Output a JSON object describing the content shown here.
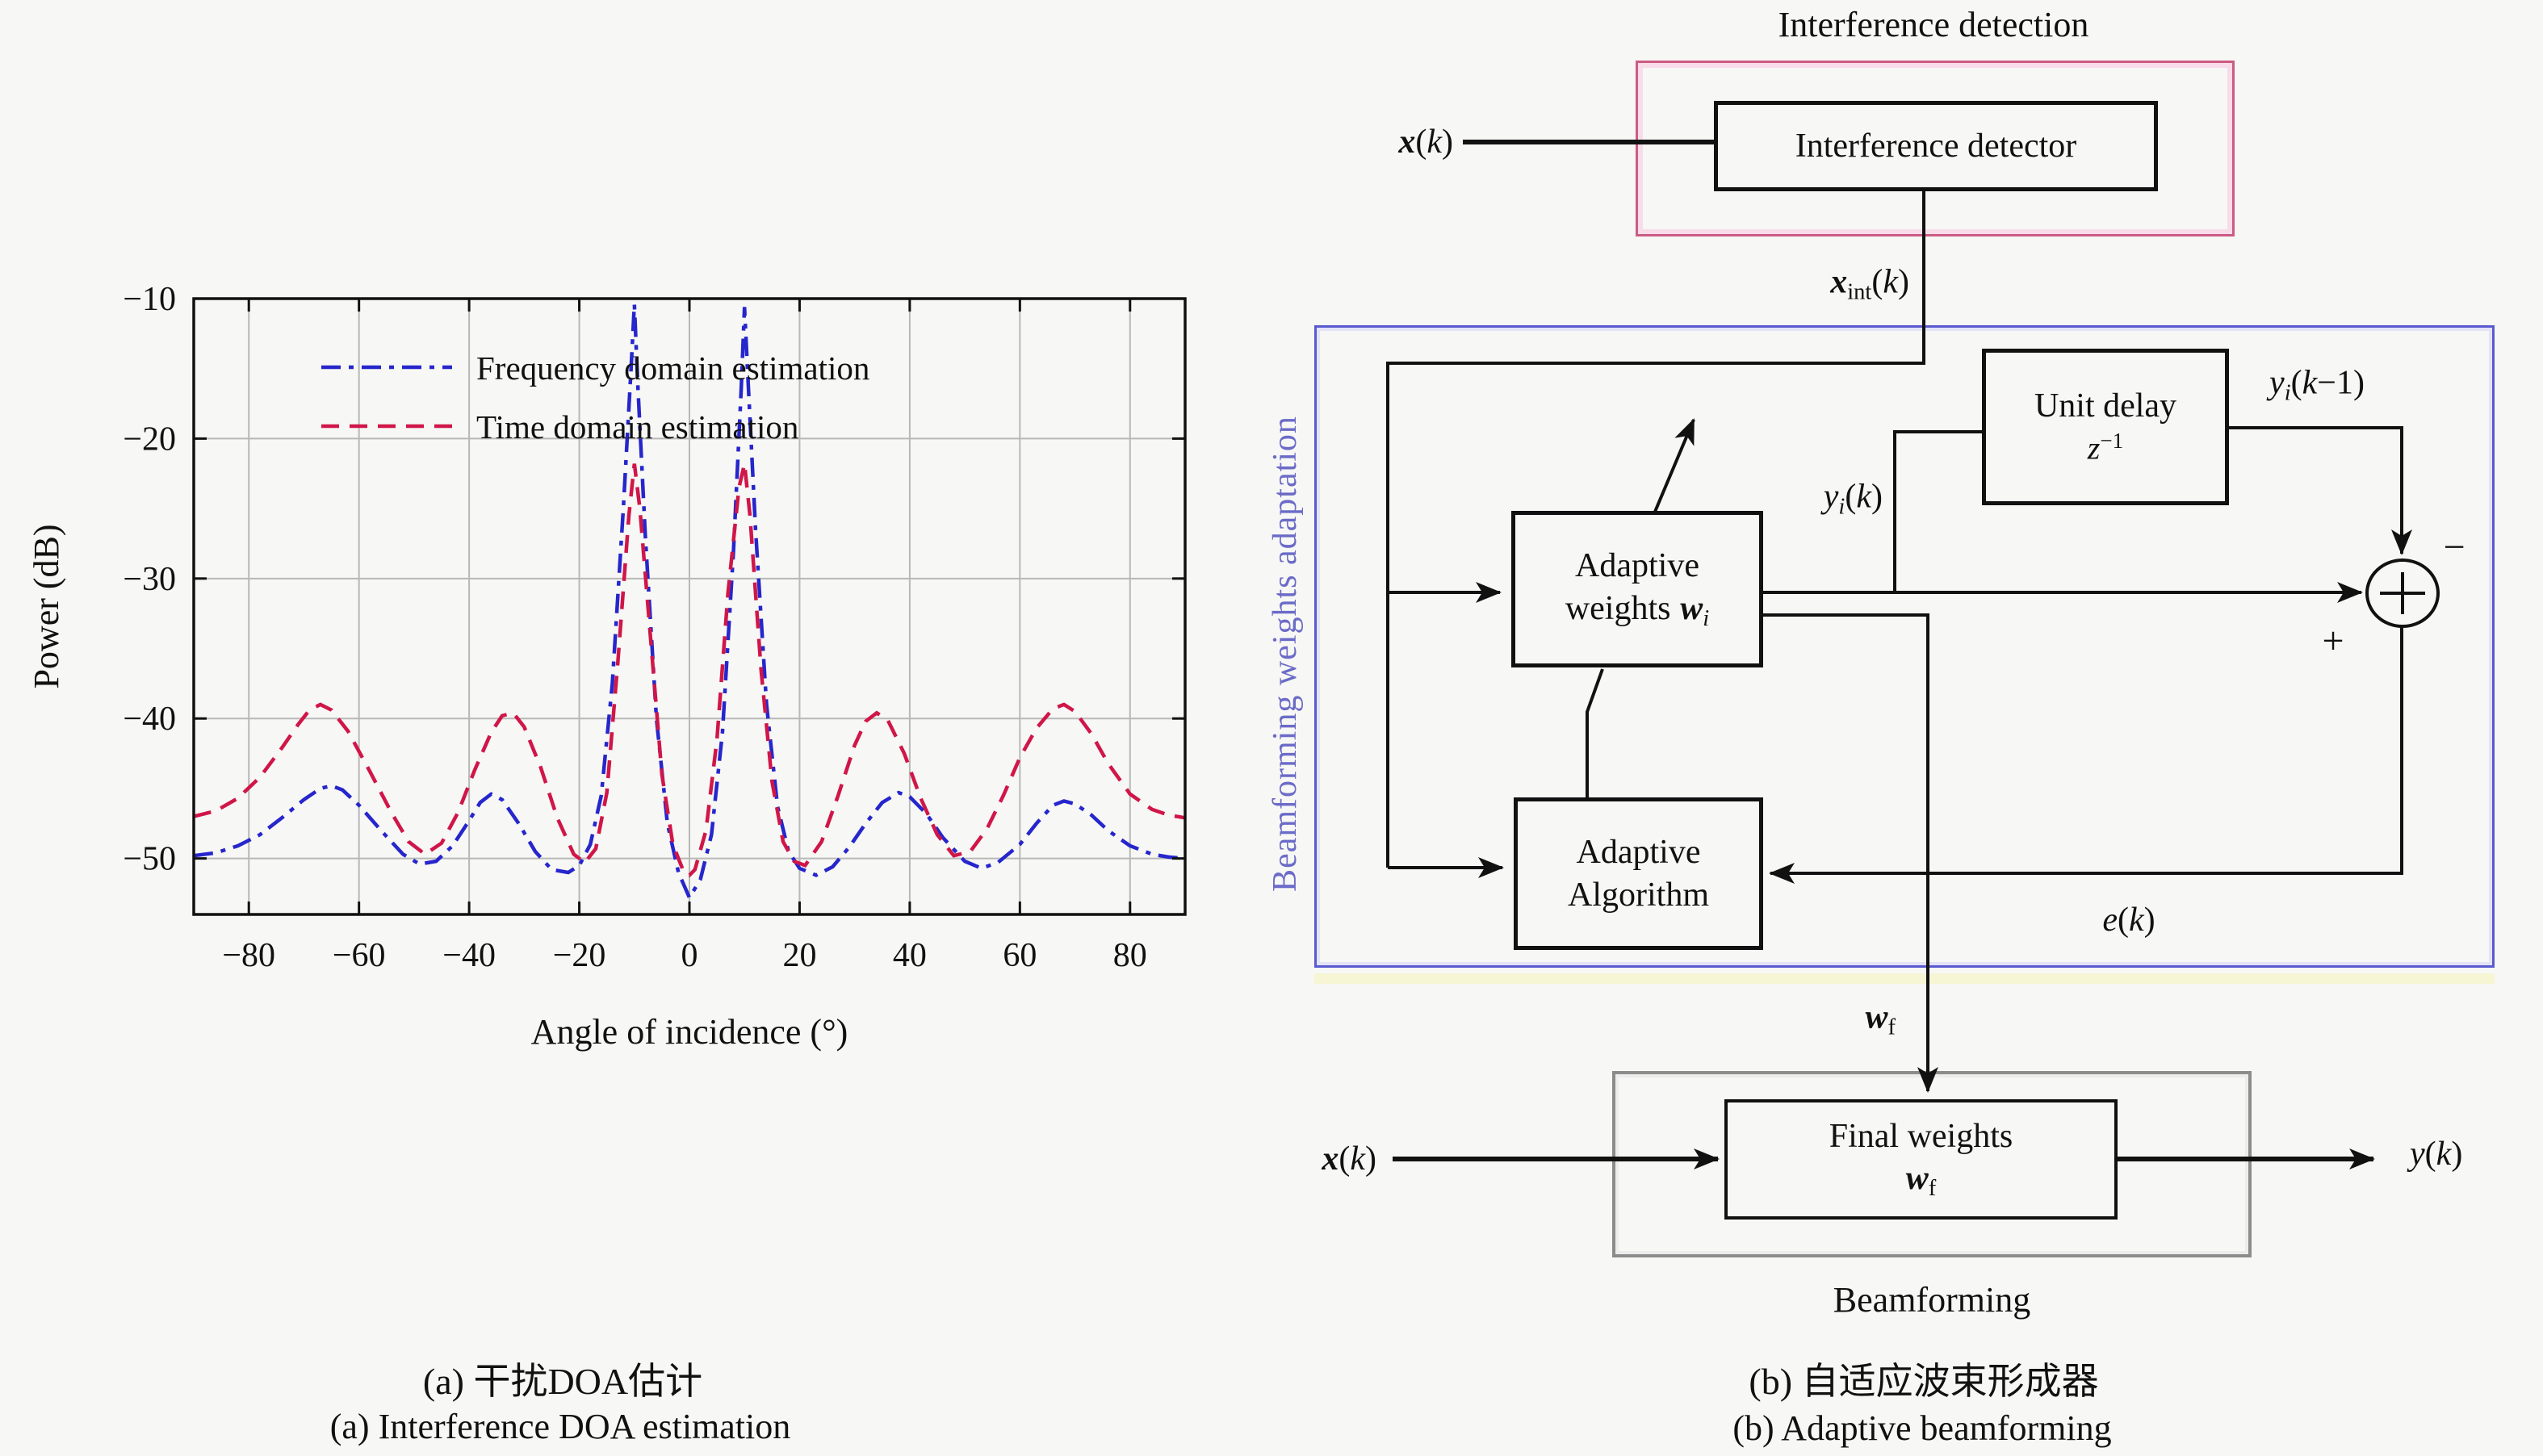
{
  "captions": {
    "a_line1": "(a) 干扰DOA估计",
    "a_line2": "(a) Interference DOA estimation",
    "b_line1": "(b) 自适应波束形成器",
    "b_line2": "(b) Adaptive beamforming"
  },
  "chart_data": {
    "type": "line",
    "title": "",
    "xlabel": "Angle of incidence (°)",
    "ylabel": "Power (dB)",
    "xlim": [
      -90,
      90
    ],
    "ylim": [
      -54,
      -10
    ],
    "xticks": [
      -80,
      -60,
      -40,
      -20,
      0,
      20,
      40,
      60,
      80
    ],
    "yticks": [
      -10,
      -20,
      -30,
      -40,
      -50
    ],
    "grid": true,
    "legend_position": "top-left",
    "series": [
      {
        "name": "Frequency domain estimation",
        "color": "#2626cc",
        "style": "dash-dot",
        "points": [
          [
            -90,
            -49.8
          ],
          [
            -86,
            -49.6
          ],
          [
            -82,
            -49.1
          ],
          [
            -78,
            -48.3
          ],
          [
            -74,
            -47.1
          ],
          [
            -70,
            -45.8
          ],
          [
            -67,
            -45.0
          ],
          [
            -65,
            -44.8
          ],
          [
            -63,
            -45.1
          ],
          [
            -60,
            -46.2
          ],
          [
            -56,
            -48.0
          ],
          [
            -52,
            -49.7
          ],
          [
            -49,
            -50.4
          ],
          [
            -46,
            -50.2
          ],
          [
            -43,
            -49.1
          ],
          [
            -40,
            -47.3
          ],
          [
            -38,
            -46.0
          ],
          [
            -36,
            -45.4
          ],
          [
            -34,
            -45.8
          ],
          [
            -31,
            -47.5
          ],
          [
            -28,
            -49.5
          ],
          [
            -25,
            -50.8
          ],
          [
            -22,
            -51.0
          ],
          [
            -20,
            -50.5
          ],
          [
            -18,
            -49.0
          ],
          [
            -16,
            -45.5
          ],
          [
            -14,
            -37.5
          ],
          [
            -12,
            -25.0
          ],
          [
            -10.6,
            -15.0
          ],
          [
            -10,
            -10.4
          ],
          [
            -9.4,
            -16.0
          ],
          [
            -8,
            -27.0
          ],
          [
            -6,
            -40.0
          ],
          [
            -4,
            -47.5
          ],
          [
            -2,
            -51.0
          ],
          [
            0,
            -52.8
          ],
          [
            2,
            -51.5
          ],
          [
            4,
            -48.3
          ],
          [
            6,
            -41.0
          ],
          [
            8,
            -28.0
          ],
          [
            9.4,
            -16.5
          ],
          [
            10,
            -10.6
          ],
          [
            10.6,
            -15.5
          ],
          [
            12,
            -26.5
          ],
          [
            14,
            -39.0
          ],
          [
            16,
            -46.3
          ],
          [
            18,
            -49.5
          ],
          [
            20,
            -50.7
          ],
          [
            23,
            -51.2
          ],
          [
            26,
            -50.6
          ],
          [
            29,
            -49.2
          ],
          [
            32,
            -47.5
          ],
          [
            35,
            -46.0
          ],
          [
            38,
            -45.3
          ],
          [
            40,
            -45.6
          ],
          [
            43,
            -46.8
          ],
          [
            46,
            -48.5
          ],
          [
            50,
            -50.2
          ],
          [
            53,
            -50.7
          ],
          [
            56,
            -50.3
          ],
          [
            60,
            -49.0
          ],
          [
            63,
            -47.5
          ],
          [
            66,
            -46.2
          ],
          [
            68,
            -45.9
          ],
          [
            70,
            -46.1
          ],
          [
            73,
            -46.9
          ],
          [
            76,
            -48.0
          ],
          [
            80,
            -49.1
          ],
          [
            84,
            -49.7
          ],
          [
            87,
            -49.9
          ],
          [
            90,
            -50.0
          ]
        ]
      },
      {
        "name": "Time domain estimation",
        "color": "#d01648",
        "style": "dashed",
        "points": [
          [
            -90,
            -47.0
          ],
          [
            -86,
            -46.6
          ],
          [
            -82,
            -45.7
          ],
          [
            -78,
            -44.2
          ],
          [
            -74,
            -42.1
          ],
          [
            -71,
            -40.4
          ],
          [
            -69,
            -39.4
          ],
          [
            -67,
            -39.0
          ],
          [
            -65,
            -39.4
          ],
          [
            -62,
            -40.9
          ],
          [
            -58,
            -43.8
          ],
          [
            -54,
            -46.8
          ],
          [
            -51,
            -48.8
          ],
          [
            -48,
            -49.7
          ],
          [
            -45,
            -48.9
          ],
          [
            -42,
            -46.7
          ],
          [
            -39,
            -43.7
          ],
          [
            -36,
            -41.0
          ],
          [
            -34,
            -39.8
          ],
          [
            -32,
            -39.6
          ],
          [
            -30,
            -40.6
          ],
          [
            -27,
            -43.5
          ],
          [
            -24,
            -47.1
          ],
          [
            -21,
            -49.7
          ],
          [
            -19,
            -50.3
          ],
          [
            -17,
            -49.3
          ],
          [
            -15,
            -45.3
          ],
          [
            -13,
            -36.0
          ],
          [
            -11,
            -25.5
          ],
          [
            -10,
            -21.8
          ],
          [
            -9,
            -25.0
          ],
          [
            -7,
            -34.5
          ],
          [
            -5,
            -44.0
          ],
          [
            -3,
            -49.0
          ],
          [
            -1,
            -51.0
          ],
          [
            0,
            -51.2
          ],
          [
            1,
            -50.8
          ],
          [
            3,
            -48.0
          ],
          [
            5,
            -41.5
          ],
          [
            7,
            -31.0
          ],
          [
            9,
            -23.5
          ],
          [
            10,
            -21.8
          ],
          [
            11,
            -25.5
          ],
          [
            13,
            -36.5
          ],
          [
            15,
            -44.5
          ],
          [
            17,
            -48.8
          ],
          [
            19,
            -50.2
          ],
          [
            21,
            -50.5
          ],
          [
            24,
            -48.8
          ],
          [
            27,
            -45.5
          ],
          [
            30,
            -41.9
          ],
          [
            32,
            -40.2
          ],
          [
            34,
            -39.6
          ],
          [
            36,
            -40.1
          ],
          [
            39,
            -42.5
          ],
          [
            42,
            -45.7
          ],
          [
            45,
            -48.3
          ],
          [
            48,
            -49.8
          ],
          [
            51,
            -49.5
          ],
          [
            54,
            -47.9
          ],
          [
            57,
            -45.5
          ],
          [
            60,
            -42.8
          ],
          [
            63,
            -40.7
          ],
          [
            66,
            -39.3
          ],
          [
            68,
            -39.0
          ],
          [
            70,
            -39.5
          ],
          [
            73,
            -41.1
          ],
          [
            76,
            -43.2
          ],
          [
            80,
            -45.4
          ],
          [
            84,
            -46.5
          ],
          [
            87,
            -46.9
          ],
          [
            90,
            -47.1
          ]
        ]
      }
    ]
  },
  "diagram": {
    "title": "Interference detection",
    "group_labels": {
      "adaptation": "Beamforming weights adaptation",
      "beamforming": "Beamforming"
    },
    "blocks": {
      "interference_detector": "Interference detector",
      "unit_delay": "Unit delay",
      "adaptive_weights_line1": "Adaptive",
      "adaptive_weights_line2": "weights",
      "adaptive_algorithm_line1": "Adaptive",
      "adaptive_algorithm_line2": "Algorithm",
      "final_weights": "Final weights"
    },
    "signs": {
      "minus": "−",
      "plus": "+"
    },
    "colors": {
      "detection_border": "#cc5b82",
      "adaptation_border": "#5a5ad0",
      "adaptation_label": "#6b6bc8",
      "beamforming_border": "#8c8c8c",
      "wire": "#111111"
    },
    "math": {
      "xk": [
        {
          "t": "x",
          "s": "bi"
        },
        {
          "t": "(",
          "s": "n"
        },
        {
          "t": "k",
          "s": "i"
        },
        {
          "t": ")",
          "s": "n"
        }
      ],
      "xint": [
        {
          "t": "x",
          "s": "bi"
        },
        {
          "t": "int",
          "s": "sub"
        },
        {
          "t": "(",
          "s": "n"
        },
        {
          "t": "k",
          "s": "i"
        },
        {
          "t": ")",
          "s": "n"
        }
      ],
      "yik": [
        {
          "t": "y",
          "s": "i"
        },
        {
          "t": "i",
          "s": "subi"
        },
        {
          "t": "(",
          "s": "n"
        },
        {
          "t": "k",
          "s": "i"
        },
        {
          "t": ")",
          "s": "n"
        }
      ],
      "yik1": [
        {
          "t": "y",
          "s": "i"
        },
        {
          "t": "i",
          "s": "subi"
        },
        {
          "t": "(",
          "s": "n"
        },
        {
          "t": "k",
          "s": "i"
        },
        {
          "t": "−1",
          "s": "n"
        },
        {
          "t": ")",
          "s": "n"
        }
      ],
      "wi": [
        {
          "t": "w",
          "s": "bi"
        },
        {
          "t": "i",
          "s": "subi"
        }
      ],
      "wf": [
        {
          "t": "w",
          "s": "bi"
        },
        {
          "t": "f",
          "s": "sub"
        }
      ],
      "ek": [
        {
          "t": "e",
          "s": "i"
        },
        {
          "t": "(",
          "s": "n"
        },
        {
          "t": "k",
          "s": "i"
        },
        {
          "t": ")",
          "s": "n"
        }
      ],
      "yk": [
        {
          "t": "y",
          "s": "i"
        },
        {
          "t": "(",
          "s": "n"
        },
        {
          "t": "k",
          "s": "i"
        },
        {
          "t": ")",
          "s": "n"
        }
      ],
      "zinv": [
        {
          "t": "z",
          "s": "i"
        },
        {
          "t": "−1",
          "s": "sup"
        }
      ]
    }
  }
}
